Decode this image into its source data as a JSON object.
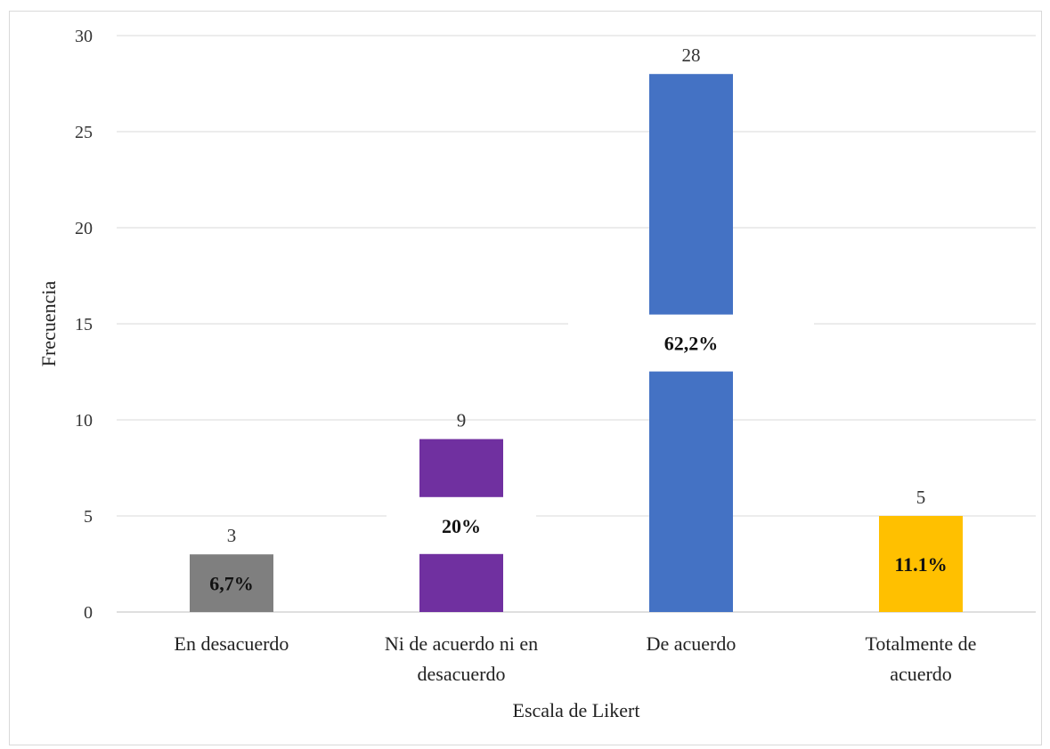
{
  "chart_data": {
    "type": "bar",
    "categories": [
      [
        "En desacuerdo"
      ],
      [
        "Ni de acuerdo ni en",
        "desacuerdo"
      ],
      [
        "De acuerdo"
      ],
      [
        "Totalmente de",
        "acuerdo"
      ]
    ],
    "values": [
      3,
      9,
      28,
      5
    ],
    "percent_labels": [
      "6,7%",
      "20%",
      "62,2%",
      "11.1%"
    ],
    "bar_colors": [
      "#7f7f7f",
      "#7030a0",
      "#4472c4",
      "#ffc000"
    ],
    "title": "",
    "xlabel": "Escala de Likert",
    "ylabel": "Frecuencia",
    "ylim": [
      0,
      30
    ],
    "yticks": [
      0,
      5,
      10,
      15,
      20,
      25,
      30
    ],
    "grid": true,
    "legend": "none"
  }
}
